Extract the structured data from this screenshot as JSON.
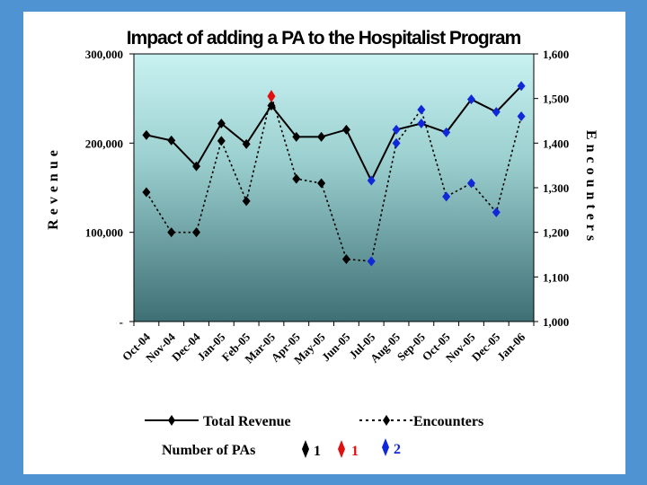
{
  "chart_data": {
    "type": "line",
    "title": "Impact of adding a PA to the Hospitalist Program",
    "categories": [
      "Oct-04",
      "Nov-04",
      "Dec-04",
      "Jan-05",
      "Feb-05",
      "Mar-05",
      "Apr-05",
      "May-05",
      "Jun-05",
      "Jul-05",
      "Aug-05",
      "Sep-05",
      "Oct-05",
      "Nov-05",
      "Dec-05",
      "Jan-06"
    ],
    "ylabel_left": "Revenue",
    "ylabel_right": "Encounters",
    "ylim_left": [
      0,
      300000
    ],
    "ylim_right": [
      1000,
      1600
    ],
    "left_ticks": [
      "-",
      "100,000",
      "200,000",
      "300,000"
    ],
    "left_tick_values": [
      0,
      100000,
      200000,
      300000
    ],
    "right_ticks": [
      "1,000",
      "1,100",
      "1,200",
      "1,300",
      "1,400",
      "1,500",
      "1,600"
    ],
    "right_tick_values": [
      1000,
      1100,
      1200,
      1300,
      1400,
      1500,
      1600
    ],
    "series": [
      {
        "name": "Total Revenue",
        "axis": "left",
        "style": "solid",
        "values": [
          209000,
          203000,
          174000,
          222000,
          199000,
          242000,
          207000,
          207000,
          215000,
          158000,
          215000,
          222000,
          212000,
          249000,
          235000,
          264000
        ]
      },
      {
        "name": "Encounters",
        "axis": "right",
        "style": "dotted",
        "values": [
          1290,
          1200,
          1200,
          1405,
          1270,
          1505,
          1320,
          1310,
          1140,
          1135,
          1400,
          1475,
          1280,
          1310,
          1245,
          1460
        ]
      }
    ],
    "pa_count": [
      1,
      1,
      1,
      1,
      1,
      1,
      1,
      1,
      1,
      2,
      2,
      2,
      2,
      2,
      2,
      2
    ],
    "red_marker_index": 5,
    "legend": {
      "revenue_label": "Total Revenue",
      "encounters_label": "Encounters",
      "pa_label": "Number of PAs",
      "pa_entries": [
        {
          "label": "1",
          "color": "#000000"
        },
        {
          "label": "1",
          "color": "#e01010"
        },
        {
          "label": "2",
          "color": "#1028d8"
        }
      ]
    },
    "colors": {
      "pa1": "#000000",
      "pa1_highlight": "#e01010",
      "pa2": "#1028d8",
      "plot_top": "#c9f2f2",
      "plot_bottom": "#3d6f74",
      "background": "#4f93d3"
    }
  }
}
